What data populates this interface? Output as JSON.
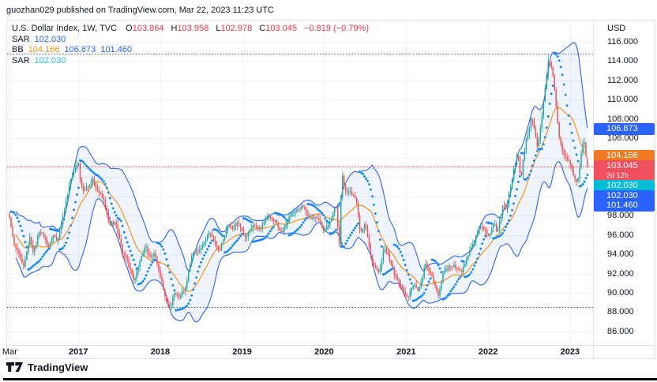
{
  "header": {
    "publish_line": "guozhan029 published on TradingView.com, Mar 22, 2023 11:23 UTC"
  },
  "legend": {
    "title": "U.S. Dollar Index, 1W, TVC",
    "ohlc": {
      "o_label": "O",
      "o": "103.864",
      "h_label": "H",
      "h": "103.958",
      "l_label": "L",
      "l": "102.978",
      "c_label": "C",
      "c": "103.045",
      "change": "−0.819 (−0.79%)"
    },
    "rows": [
      {
        "name": "SAR",
        "values": [
          {
            "text": "102.030",
            "color": "#2962FF"
          }
        ]
      },
      {
        "name": "BB",
        "values": [
          {
            "text": "104.166",
            "color": "#F7931A"
          },
          {
            "text": "106.873",
            "color": "#2962FF"
          },
          {
            "text": "101.460",
            "color": "#2962FF"
          }
        ]
      },
      {
        "name": "SAR",
        "values": [
          {
            "text": "102.030",
            "color": "#2FBDD9"
          }
        ]
      }
    ]
  },
  "price_axis": {
    "currency": "USD",
    "ticks": [
      "116.000",
      "114.000",
      "112.000",
      "110.000",
      "108.000",
      "106.000",
      "98.000",
      "96.000",
      "94.000",
      "92.000",
      "90.000",
      "88.000",
      "86.000"
    ],
    "badges": [
      {
        "text": "106.873",
        "color": "#2962FF"
      },
      {
        "text": "104.166",
        "color": "#F07B23"
      },
      {
        "text": "103.045",
        "countdown": "2d 12h",
        "color": "#F04F5E"
      },
      {
        "text": "102.030",
        "color": "#00BCD4"
      },
      {
        "text": "102.030",
        "color": "#2962FF"
      },
      {
        "text": "101.460",
        "color": "#2962FF"
      }
    ]
  },
  "time_axis": {
    "labels": [
      {
        "text": "Mar",
        "date": "2016-03-01"
      },
      {
        "text": "2017",
        "date": "2017-01-01"
      },
      {
        "text": "2018",
        "date": "2018-01-01"
      },
      {
        "text": "2019",
        "date": "2019-01-01"
      },
      {
        "text": "2020",
        "date": "2020-01-01"
      },
      {
        "text": "2021",
        "date": "2021-01-01"
      },
      {
        "text": "2022",
        "date": "2022-01-01"
      },
      {
        "text": "2023",
        "date": "2023-01-01"
      }
    ]
  },
  "footer": {
    "brand": "TradingView"
  },
  "chart_data": {
    "type": "candlestick",
    "title": "U.S. Dollar Index",
    "exchange": "TVC",
    "timeframe": "1W",
    "x_range": [
      "2016-03-01",
      "2023-03-22"
    ],
    "y_axis": {
      "min": 84.6,
      "max": 118.3,
      "tick_step": 2,
      "currency": "USD"
    },
    "grid": true,
    "legend_position": "top-left",
    "bar_colors": {
      "up": "#26A69A",
      "down": "#EF5350"
    },
    "last_bar": {
      "open": 103.864,
      "high": 103.958,
      "low": 102.978,
      "close": 103.045,
      "change": -0.819,
      "change_pct": -0.79
    },
    "price_line": {
      "value": 103.045,
      "color": "#F23645",
      "style": "dotted"
    },
    "levels": [
      {
        "value": 114.75,
        "color": "#4A4E59",
        "style": "dotted"
      },
      {
        "value": 88.5,
        "color": "#4A4E59",
        "style": "dotted"
      }
    ],
    "overlays": [
      {
        "name": "SAR",
        "current": 102.03,
        "color": "#2962FF"
      },
      {
        "name": "BB",
        "length": 20,
        "mult": 2,
        "basis": 104.166,
        "upper": 106.873,
        "lower": 101.46,
        "basis_color": "#F7931A",
        "band_color": "#2962FF",
        "fill_color": "rgba(41,98,255,0.07)"
      },
      {
        "name": "SAR",
        "current": 102.03,
        "color": "#2FBDD9"
      }
    ],
    "weekly_close_anchors": [
      [
        "2016-03-01",
        97.8
      ],
      [
        "2016-03-18",
        95.1
      ],
      [
        "2016-04-08",
        94.2
      ],
      [
        "2016-05-02",
        92.8
      ],
      [
        "2016-05-30",
        95.6
      ],
      [
        "2016-06-17",
        94.1
      ],
      [
        "2016-07-08",
        96.3
      ],
      [
        "2016-08-05",
        95.8
      ],
      [
        "2016-08-19",
        94.5
      ],
      [
        "2016-09-09",
        96.0
      ],
      [
        "2016-09-30",
        95.4
      ],
      [
        "2016-10-28",
        98.3
      ],
      [
        "2016-11-25",
        101.5
      ],
      [
        "2016-12-23",
        103.2
      ],
      [
        "2017-01-02",
        103.5
      ],
      [
        "2017-01-13",
        101.2
      ],
      [
        "2017-01-27",
        100.5
      ],
      [
        "2017-02-17",
        100.9
      ],
      [
        "2017-03-03",
        101.8
      ],
      [
        "2017-03-31",
        100.4
      ],
      [
        "2017-04-21",
        99.9
      ],
      [
        "2017-05-19",
        97.1
      ],
      [
        "2017-06-16",
        97.2
      ],
      [
        "2017-07-21",
        93.9
      ],
      [
        "2017-08-04",
        93.4
      ],
      [
        "2017-09-08",
        91.3
      ],
      [
        "2017-09-29",
        93.1
      ],
      [
        "2017-10-27",
        94.9
      ],
      [
        "2017-11-17",
        93.7
      ],
      [
        "2017-12-08",
        94.0
      ],
      [
        "2017-12-29",
        92.1
      ],
      [
        "2018-01-26",
        89.1
      ],
      [
        "2018-02-16",
        88.6
      ],
      [
        "2018-03-09",
        90.1
      ],
      [
        "2018-03-23",
        89.4
      ],
      [
        "2018-04-20",
        90.3
      ],
      [
        "2018-05-25",
        94.2
      ],
      [
        "2018-06-29",
        94.5
      ],
      [
        "2018-08-10",
        96.4
      ],
      [
        "2018-09-21",
        94.2
      ],
      [
        "2018-10-31",
        97.1
      ],
      [
        "2018-11-16",
        96.5
      ],
      [
        "2018-12-14",
        97.4
      ],
      [
        "2019-01-11",
        95.7
      ],
      [
        "2019-02-15",
        96.9
      ],
      [
        "2019-03-22",
        96.7
      ],
      [
        "2019-04-26",
        98.0
      ],
      [
        "2019-05-24",
        97.6
      ],
      [
        "2019-06-28",
        96.1
      ],
      [
        "2019-08-02",
        98.1
      ],
      [
        "2019-09-27",
        99.1
      ],
      [
        "2019-10-25",
        97.8
      ],
      [
        "2019-12-06",
        97.7
      ],
      [
        "2019-12-31",
        96.4
      ],
      [
        "2020-01-31",
        97.4
      ],
      [
        "2020-02-21",
        99.3
      ],
      [
        "2020-03-09",
        95.1
      ],
      [
        "2020-03-20",
        102.8
      ],
      [
        "2020-04-03",
        100.6
      ],
      [
        "2020-04-24",
        100.4
      ],
      [
        "2020-05-22",
        99.9
      ],
      [
        "2020-06-10",
        96.4
      ],
      [
        "2020-07-02",
        97.2
      ],
      [
        "2020-07-31",
        93.3
      ],
      [
        "2020-09-01",
        92.1
      ],
      [
        "2020-09-25",
        94.6
      ],
      [
        "2020-10-16",
        93.7
      ],
      [
        "2020-11-06",
        92.2
      ],
      [
        "2020-12-04",
        90.8
      ],
      [
        "2021-01-06",
        89.5
      ],
      [
        "2021-02-05",
        91.0
      ],
      [
        "2021-02-25",
        90.2
      ],
      [
        "2021-03-31",
        93.2
      ],
      [
        "2021-04-30",
        91.3
      ],
      [
        "2021-05-25",
        89.8
      ],
      [
        "2021-06-18",
        92.3
      ],
      [
        "2021-07-16",
        92.7
      ],
      [
        "2021-08-06",
        92.8
      ],
      [
        "2021-09-03",
        92.1
      ],
      [
        "2021-10-12",
        94.4
      ],
      [
        "2021-11-24",
        96.8
      ],
      [
        "2021-12-17",
        96.6
      ],
      [
        "2021-12-31",
        95.7
      ],
      [
        "2022-01-28",
        97.3
      ],
      [
        "2022-02-11",
        96.1
      ],
      [
        "2022-03-07",
        99.1
      ],
      [
        "2022-03-25",
        98.8
      ],
      [
        "2022-04-29",
        103.2
      ],
      [
        "2022-05-13",
        104.6
      ],
      [
        "2022-05-27",
        101.7
      ],
      [
        "2022-06-14",
        105.2
      ],
      [
        "2022-07-15",
        108.2
      ],
      [
        "2022-08-10",
        104.9
      ],
      [
        "2022-09-07",
        110.2
      ],
      [
        "2022-09-28",
        114.3
      ],
      [
        "2022-10-13",
        113.2
      ],
      [
        "2022-10-27",
        110.3
      ],
      [
        "2022-11-11",
        106.4
      ],
      [
        "2022-12-02",
        104.4
      ],
      [
        "2022-12-30",
        103.5
      ],
      [
        "2023-01-20",
        101.9
      ],
      [
        "2023-02-02",
        101.2
      ],
      [
        "2023-02-24",
        105.2
      ],
      [
        "2023-03-08",
        105.6
      ],
      [
        "2023-03-15",
        104.0
      ],
      [
        "2023-03-22",
        103.045
      ]
    ]
  }
}
